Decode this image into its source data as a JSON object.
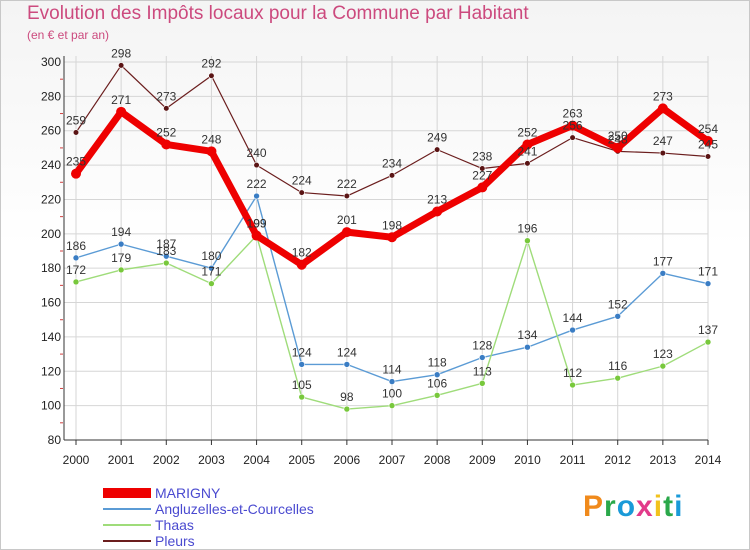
{
  "header": {
    "title": "Evolution des Impôts locaux pour la Commune par Habitant",
    "subtitle": "(en € et par an)"
  },
  "logo": {
    "text": "Proxiti"
  },
  "colors": {
    "grid": "#d6d6d6",
    "axis": "#333333",
    "title": "#cc4a7e",
    "legend_text": "#4a4ad0"
  },
  "chart_data": {
    "type": "line",
    "title": "Evolution des Impôts locaux pour la Commune par Habitant",
    "subtitle": "(en € et par an)",
    "xlabel": "",
    "ylabel": "",
    "x": [
      "2000",
      "2001",
      "2002",
      "2003",
      "2004",
      "2005",
      "2006",
      "2007",
      "2008",
      "2009",
      "2010",
      "2011",
      "2012",
      "2013",
      "2014"
    ],
    "ylim": [
      80,
      300
    ],
    "yticks": [
      80,
      100,
      120,
      140,
      160,
      180,
      200,
      220,
      240,
      260,
      280,
      300
    ],
    "grid": true,
    "legend_position": "bottom-left",
    "series": [
      {
        "name": "Pleurs",
        "color": "#6b1e1e",
        "marker": "#5a1414",
        "width": 1.2,
        "r": 2.8,
        "values": [
          259,
          298,
          273,
          292,
          240,
          224,
          222,
          234,
          249,
          238,
          241,
          256,
          248,
          247,
          245
        ],
        "labels": [
          "259",
          "298",
          "273",
          "292",
          "240",
          "224",
          "222",
          "234",
          "249",
          "238",
          "241",
          "256",
          "248",
          "247",
          "245"
        ]
      },
      {
        "name": "Angluzelles-et-Courcelles",
        "color": "#5b9bd5",
        "marker": "#3a7dc4",
        "width": 1.4,
        "r": 3,
        "values": [
          186,
          194,
          187,
          180,
          222,
          124,
          124,
          114,
          118,
          128,
          134,
          144,
          152,
          177,
          171
        ],
        "labels": [
          "186",
          "194",
          "187",
          "180",
          "222",
          "124",
          "124",
          "114",
          "118",
          "128",
          "134",
          "144",
          "152",
          "177",
          "171"
        ]
      },
      {
        "name": "Thaas",
        "color": "#9fdc7a",
        "marker": "#78c83c",
        "width": 1.4,
        "r": 3,
        "values": [
          172,
          179,
          183,
          171,
          199,
          105,
          98,
          100,
          106,
          113,
          196,
          112,
          116,
          123,
          137
        ],
        "labels": [
          "172",
          "179",
          "183",
          "171",
          "199",
          "105",
          "98",
          "100",
          "106",
          "113",
          "196",
          "112",
          "116",
          "123",
          "137"
        ]
      },
      {
        "name": "MARIGNY",
        "color": "#ee0000",
        "marker": "#ee0000",
        "width": 7,
        "r": 5,
        "values": [
          235,
          271,
          252,
          248,
          199,
          182,
          201,
          198,
          213,
          227,
          252,
          263,
          250,
          273,
          254
        ],
        "labels": [
          "235",
          "271",
          "252",
          "248",
          "199",
          "182",
          "201",
          "198",
          "213",
          "227",
          "252",
          "263",
          "250",
          "273",
          "254"
        ]
      }
    ],
    "legend": [
      {
        "name": "MARIGNY",
        "color": "#ee0000",
        "width": 10
      },
      {
        "name": "Angluzelles-et-Courcelles",
        "color": "#5b9bd5",
        "width": 2
      },
      {
        "name": "Thaas",
        "color": "#9fdc7a",
        "width": 2
      },
      {
        "name": "Pleurs",
        "color": "#6b1e1e",
        "width": 2
      }
    ]
  }
}
